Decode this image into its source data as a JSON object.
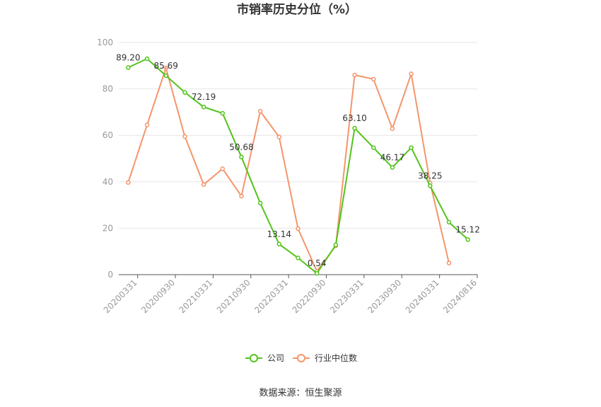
{
  "chart_data": {
    "type": "line",
    "title": "市销率历史分位（%）",
    "ylim": [
      0,
      100
    ],
    "y_ticks": [
      0,
      20,
      40,
      60,
      80,
      100
    ],
    "x_tick_labels": [
      "20200331",
      "20200930",
      "20210331",
      "20210930",
      "20220331",
      "20220930",
      "20230331",
      "20230930",
      "20240331",
      "20240816"
    ],
    "grid": "horizontal",
    "legend_position": "bottom-center",
    "series": [
      {
        "name": "公司",
        "color": "#52c41a",
        "values": [
          89.2,
          93.0,
          85.69,
          78.5,
          72.19,
          69.5,
          50.68,
          30.8,
          13.14,
          7.2,
          0.54,
          12.8,
          63.1,
          54.7,
          46.17,
          54.7,
          38.25,
          22.6,
          15.12
        ]
      },
      {
        "name": "行业中位数",
        "color": "#f5956b",
        "values": [
          39.7,
          64.5,
          89.0,
          59.5,
          38.8,
          45.6,
          33.8,
          70.4,
          59.3,
          19.8,
          1.5,
          12.4,
          86.0,
          84.2,
          62.9,
          86.5,
          39.5,
          5.0,
          null
        ]
      }
    ],
    "data_labels": [
      {
        "series": 0,
        "index": 0,
        "text": "89.20"
      },
      {
        "series": 0,
        "index": 2,
        "text": "85.69"
      },
      {
        "series": 0,
        "index": 4,
        "text": "72.19"
      },
      {
        "series": 0,
        "index": 6,
        "text": "50.68"
      },
      {
        "series": 0,
        "index": 8,
        "text": "13.14"
      },
      {
        "series": 0,
        "index": 10,
        "text": "0.54"
      },
      {
        "series": 0,
        "index": 12,
        "text": "63.10"
      },
      {
        "series": 0,
        "index": 14,
        "text": "46.17"
      },
      {
        "series": 0,
        "index": 16,
        "text": "38.25"
      },
      {
        "series": 0,
        "index": 18,
        "text": "15.12"
      }
    ]
  },
  "legend": [
    {
      "label": "公司",
      "color": "#52c41a"
    },
    {
      "label": "行业中位数",
      "color": "#f5956b"
    }
  ],
  "source": "数据来源：恒生聚源"
}
